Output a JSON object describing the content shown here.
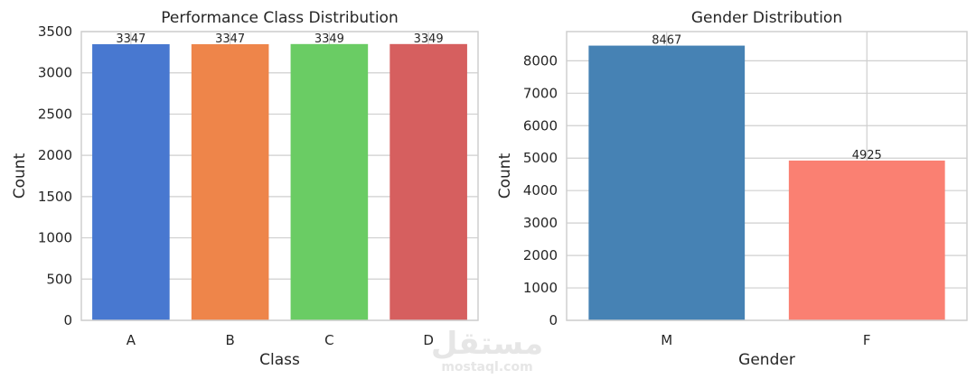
{
  "chart_data": [
    {
      "type": "bar",
      "title": "Performance Class Distribution",
      "xlabel": "Class",
      "ylabel": "Count",
      "categories": [
        "A",
        "B",
        "C",
        "D"
      ],
      "values": [
        3347,
        3347,
        3349,
        3349
      ],
      "colors": [
        "#4878d0",
        "#ee854a",
        "#6acc64",
        "#d65f5f"
      ],
      "ylim": [
        0,
        3500
      ],
      "yticks": [
        0,
        500,
        1000,
        1500,
        2000,
        2500,
        3000,
        3500
      ],
      "grid": true
    },
    {
      "type": "bar",
      "title": "Gender Distribution",
      "xlabel": "Gender",
      "ylabel": "Count",
      "categories": [
        "M",
        "F"
      ],
      "values": [
        8467,
        4925
      ],
      "colors": [
        "#4682b4",
        "#fa8072"
      ],
      "ylim": [
        0,
        8900
      ],
      "yticks": [
        0,
        1000,
        2000,
        3000,
        4000,
        5000,
        6000,
        7000,
        8000
      ],
      "grid": true
    }
  ],
  "watermark": {
    "arabic": "مستقل",
    "latin": "mostaql.com"
  }
}
